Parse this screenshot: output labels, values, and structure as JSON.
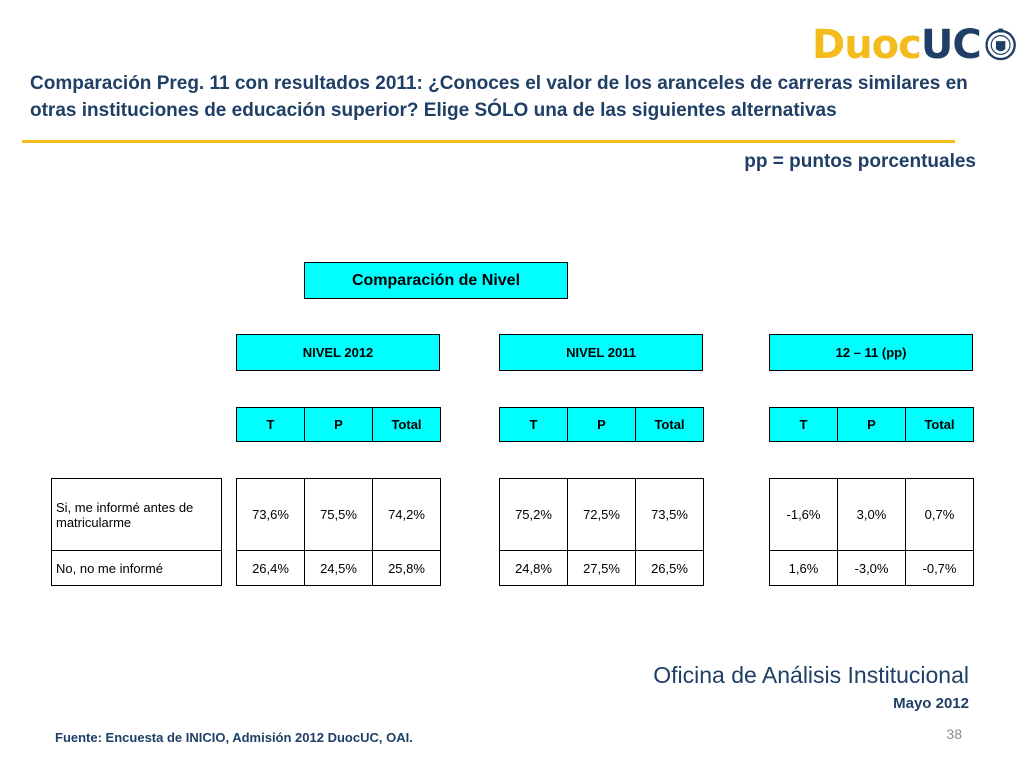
{
  "brand": {
    "duoc": "Duoc",
    "uc": "UC"
  },
  "title": "Comparación Preg. 11 con resultados 2011: ¿Conoces el valor de los aranceles de carreras similares en otras instituciones de educación superior? Elige SÓLO una de las siguientes alternativas",
  "pp_note": "pp = puntos porcentuales",
  "comparison_title": "Comparación de Nivel",
  "groups": [
    {
      "name": "NIVEL 2012",
      "headers": [
        "T",
        "P",
        "Total"
      ]
    },
    {
      "name": "NIVEL 2011",
      "headers": [
        "T",
        "P",
        "Total"
      ]
    },
    {
      "name": "12 – 11 (pp)",
      "headers": [
        "T",
        "P",
        "Total"
      ]
    }
  ],
  "row_labels": [
    "Si, me informé antes de matricularme",
    "No, no me informé"
  ],
  "values": {
    "g2012": [
      [
        "73,6%",
        "75,5%",
        "74,2%"
      ],
      [
        "26,4%",
        "24,5%",
        "25,8%"
      ]
    ],
    "g2011": [
      [
        "75,2%",
        "72,5%",
        "73,5%"
      ],
      [
        "24,8%",
        "27,5%",
        "26,5%"
      ]
    ],
    "diff": [
      [
        "-1,6%",
        "3,0%",
        "0,7%"
      ],
      [
        "1,6%",
        "-3,0%",
        "-0,7%"
      ]
    ]
  },
  "footer": {
    "office": "Oficina de Análisis Institucional",
    "date": "Mayo 2012",
    "source": "Fuente: Encuesta de INICIO, Admisión 2012 DuocUC, OAI.",
    "page": "38"
  },
  "colors": {
    "navy": "#1f3f66",
    "gold": "#f3bb1c",
    "cyan": "#00ffff"
  }
}
